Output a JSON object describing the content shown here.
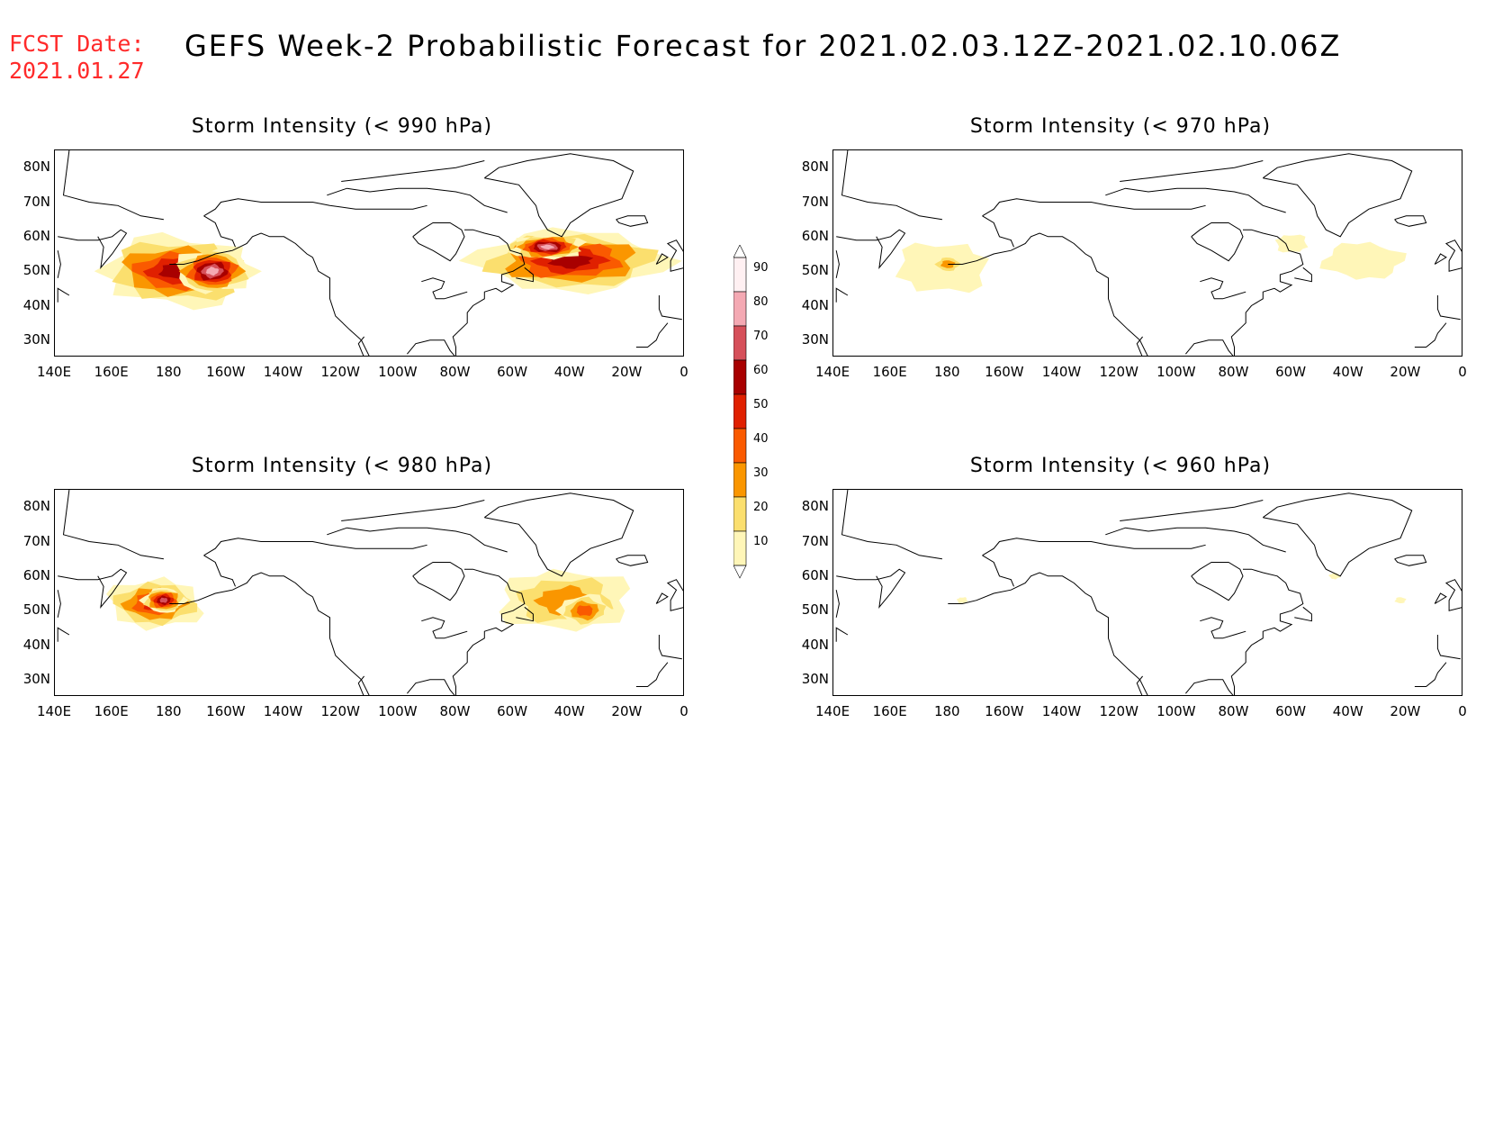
{
  "header": {
    "fcst_line1": "FCST Date:",
    "fcst_line2": "2021.01.27",
    "title": "GEFS Week-2 Probabilistic Forecast for 2021.02.03.12Z-2021.02.10.06Z"
  },
  "lat_labels": [
    "80N",
    "70N",
    "60N",
    "50N",
    "40N",
    "30N"
  ],
  "lon_labels": [
    "140E",
    "160E",
    "180",
    "160W",
    "140W",
    "120W",
    "100W",
    "80W",
    "60W",
    "40W",
    "20W",
    "0"
  ],
  "colorbar": {
    "levels": [
      "90",
      "80",
      "70",
      "60",
      "50",
      "40",
      "30",
      "20",
      "10"
    ],
    "colors": [
      "#fff0f2",
      "#f4a9b3",
      "#d6505a",
      "#a80000",
      "#e02000",
      "#fa5a00",
      "#fa9600",
      "#fbdf6e",
      "#fff6b8"
    ]
  },
  "panels": [
    {
      "id": "990",
      "title": "Storm Intensity (< 990 hPa)",
      "blobs": [
        {
          "lon": -177,
          "lat": 50,
          "rlon": 30,
          "rlat": 11,
          "level": 6
        },
        {
          "lon": -165,
          "lat": 50,
          "rlon": 14,
          "rlat": 7,
          "level": 8
        },
        {
          "lon": -40,
          "lat": 53,
          "rlon": 36,
          "rlat": 10,
          "level": 6
        },
        {
          "lon": -48,
          "lat": 57,
          "rlon": 14,
          "rlat": 4,
          "level": 8
        }
      ]
    },
    {
      "id": "970",
      "title": "Storm Intensity (< 970 hPa)",
      "blobs": [
        {
          "lon": 178,
          "lat": 51,
          "rlon": 18,
          "rlat": 8,
          "level": 1
        },
        {
          "lon": 180,
          "lat": 52,
          "rlon": 6,
          "rlat": 3,
          "level": 3
        },
        {
          "lon": -35,
          "lat": 53,
          "rlon": 15,
          "rlat": 6,
          "level": 1
        },
        {
          "lon": -60,
          "lat": 58,
          "rlon": 6,
          "rlat": 3,
          "level": 1
        }
      ]
    },
    {
      "id": "980",
      "title": "Storm Intensity (< 980 hPa)",
      "blobs": [
        {
          "lon": 175,
          "lat": 52,
          "rlon": 18,
          "rlat": 8,
          "level": 5
        },
        {
          "lon": 178,
          "lat": 53,
          "rlon": 8,
          "rlat": 4,
          "level": 7
        },
        {
          "lon": -42,
          "lat": 53,
          "rlon": 25,
          "rlat": 10,
          "level": 3
        },
        {
          "lon": -35,
          "lat": 50,
          "rlon": 10,
          "rlat": 5,
          "level": 4
        }
      ]
    },
    {
      "id": "960",
      "title": "Storm Intensity (< 960 hPa)",
      "blobs": [
        {
          "lon": -45,
          "lat": 60,
          "rlon": 2,
          "rlat": 1,
          "level": 1
        },
        {
          "lon": -22,
          "lat": 53,
          "rlon": 2,
          "rlat": 1,
          "level": 1
        },
        {
          "lon": -175,
          "lat": 53,
          "rlon": 2,
          "rlat": 1,
          "level": 1
        }
      ]
    }
  ]
}
